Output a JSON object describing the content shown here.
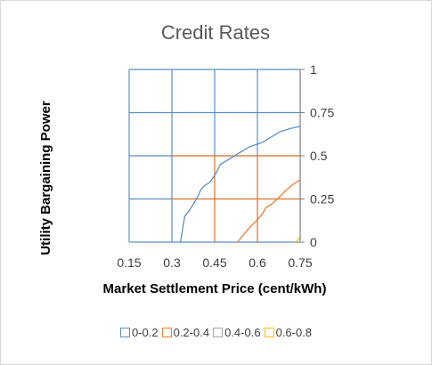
{
  "chart_data": {
    "type": "area",
    "subtype": "surface-contour",
    "title": "Credit Rates",
    "xlabel": "Market Settlement Price (cent/kWh)",
    "ylabel": "Utility Bargaining Power",
    "x_ticks": [
      "0.15",
      "0.3",
      "0.45",
      "0.6",
      "0.75"
    ],
    "y_ticks": [
      "0",
      "0.25",
      "0.5",
      "0.75",
      "1"
    ],
    "xlim": [
      0.15,
      0.75
    ],
    "ylim": [
      0,
      1
    ],
    "grid": true,
    "legend_position": "bottom",
    "series": [
      {
        "name": "0-0.2",
        "color": "#5b8fc7"
      },
      {
        "name": "0.2-0.4",
        "color": "#ed7d31"
      },
      {
        "name": "0.4-0.6",
        "color": "#a5a5a5"
      },
      {
        "name": "0.6-0.8",
        "color": "#ffc000"
      }
    ],
    "contours": [
      {
        "level": 0.2,
        "color": "#5b8fc7",
        "points": [
          [
            0.33,
            0
          ],
          [
            0.335,
            0.05
          ],
          [
            0.34,
            0.1
          ],
          [
            0.345,
            0.15
          ],
          [
            0.36,
            0.18
          ],
          [
            0.375,
            0.22
          ],
          [
            0.39,
            0.26
          ],
          [
            0.4,
            0.3
          ],
          [
            0.41,
            0.32
          ],
          [
            0.435,
            0.35
          ],
          [
            0.455,
            0.4
          ],
          [
            0.47,
            0.45
          ],
          [
            0.5,
            0.48
          ],
          [
            0.54,
            0.52
          ],
          [
            0.57,
            0.55
          ],
          [
            0.62,
            0.58
          ],
          [
            0.66,
            0.62
          ],
          [
            0.68,
            0.64
          ],
          [
            0.72,
            0.66
          ],
          [
            0.75,
            0.67
          ]
        ]
      },
      {
        "level": 0.4,
        "color": "#ed7d31",
        "points": [
          [
            0.53,
            0
          ],
          [
            0.55,
            0.04
          ],
          [
            0.57,
            0.08
          ],
          [
            0.6,
            0.13
          ],
          [
            0.62,
            0.17
          ],
          [
            0.63,
            0.2
          ],
          [
            0.65,
            0.22
          ],
          [
            0.67,
            0.25
          ],
          [
            0.7,
            0.3
          ],
          [
            0.73,
            0.34
          ],
          [
            0.75,
            0.36
          ]
        ]
      },
      {
        "level": 0.6,
        "color": "#ffc000",
        "points": [
          [
            0.735,
            0
          ],
          [
            0.745,
            0.02
          ],
          [
            0.75,
            0.03
          ]
        ]
      }
    ],
    "filled_regions": [
      {
        "color": "#5b8fc7",
        "points": [
          [
            0.15,
            0
          ],
          [
            0.33,
            0
          ],
          [
            0.335,
            0.05
          ],
          [
            0.34,
            0.1
          ],
          [
            0.345,
            0.15
          ],
          [
            0.36,
            0.18
          ],
          [
            0.375,
            0.22
          ],
          [
            0.39,
            0.26
          ],
          [
            0.4,
            0.3
          ],
          [
            0.41,
            0.32
          ],
          [
            0.435,
            0.35
          ],
          [
            0.455,
            0.4
          ],
          [
            0.47,
            0.45
          ],
          [
            0.5,
            0.48
          ],
          [
            0.54,
            0.52
          ],
          [
            0.57,
            0.55
          ],
          [
            0.62,
            0.58
          ],
          [
            0.66,
            0.62
          ],
          [
            0.68,
            0.64
          ],
          [
            0.72,
            0.66
          ],
          [
            0.75,
            0.67
          ],
          [
            0.75,
            1
          ],
          [
            0.15,
            1
          ]
        ]
      },
      {
        "color": "#ed7d31",
        "points": [
          [
            0.33,
            0
          ],
          [
            0.53,
            0
          ],
          [
            0.75,
            0.36
          ],
          [
            0.75,
            0.67
          ],
          [
            0.47,
            0.45
          ],
          [
            0.345,
            0.15
          ]
        ]
      }
    ],
    "inner_grid": {
      "color": "#ed7d31",
      "v_lines": [
        0.45,
        0.6
      ],
      "h_lines": [
        0.25,
        0.5
      ],
      "extent": {
        "x_from": 0.45,
        "y_from": 0
      }
    }
  },
  "legend": [
    {
      "label": "0-0.2",
      "color": "#5b8fc7"
    },
    {
      "label": "0.2-0.4",
      "color": "#ed7d31"
    },
    {
      "label": "0.4-0.6",
      "color": "#a5a5a5"
    },
    {
      "label": "0.6-0.8",
      "color": "#ffc000"
    }
  ]
}
